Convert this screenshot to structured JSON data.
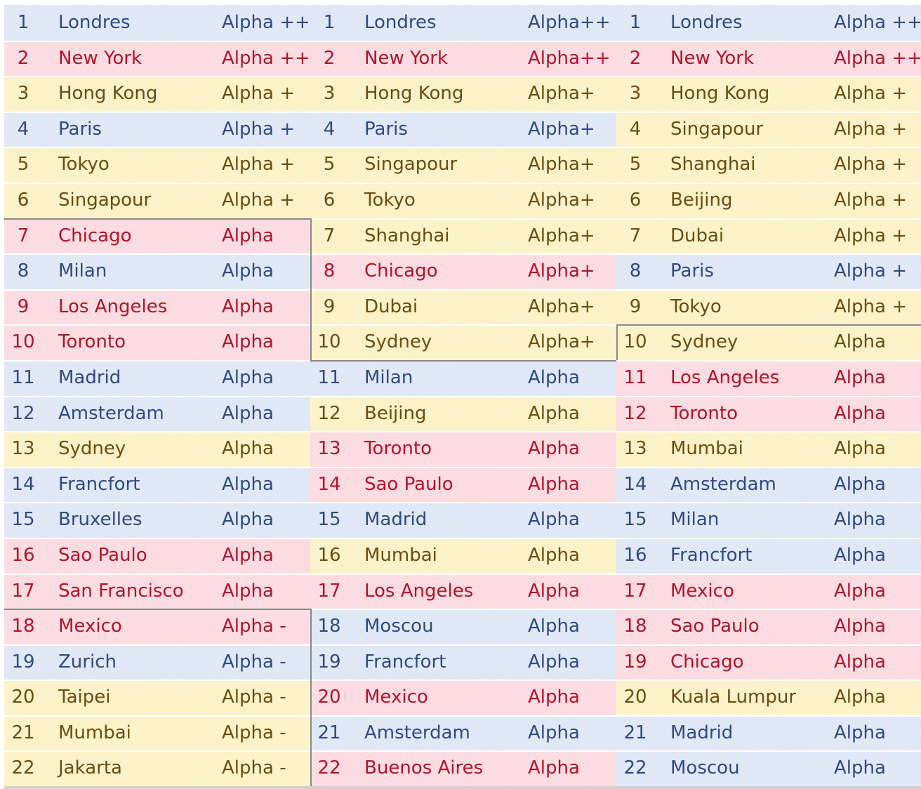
{
  "ranking": {
    "columns": [
      {
        "rows": [
          {
            "rank": "1",
            "city": "Londres",
            "tier": "Alpha ++",
            "color": "blue"
          },
          {
            "rank": "2",
            "city": "New York",
            "tier": "Alpha ++",
            "color": "red"
          },
          {
            "rank": "3",
            "city": "Hong Kong",
            "tier": "Alpha +",
            "color": "yellow"
          },
          {
            "rank": "4",
            "city": "Paris",
            "tier": "Alpha +",
            "color": "blue"
          },
          {
            "rank": "5",
            "city": "Tokyo",
            "tier": "Alpha +",
            "color": "yellow"
          },
          {
            "rank": "6",
            "city": "Singapour",
            "tier": "Alpha +",
            "color": "yellow"
          },
          {
            "rank": "7",
            "city": "Chicago",
            "tier": "Alpha",
            "color": "red"
          },
          {
            "rank": "8",
            "city": "Milan",
            "tier": "Alpha",
            "color": "blue"
          },
          {
            "rank": "9",
            "city": "Los Angeles",
            "tier": "Alpha",
            "color": "red"
          },
          {
            "rank": "10",
            "city": "Toronto",
            "tier": "Alpha",
            "color": "red"
          },
          {
            "rank": "11",
            "city": "Madrid",
            "tier": "Alpha",
            "color": "blue"
          },
          {
            "rank": "12",
            "city": "Amsterdam",
            "tier": "Alpha",
            "color": "blue"
          },
          {
            "rank": "13",
            "city": "Sydney",
            "tier": "Alpha",
            "color": "yellow"
          },
          {
            "rank": "14",
            "city": "Francfort",
            "tier": "Alpha",
            "color": "blue"
          },
          {
            "rank": "15",
            "city": "Bruxelles",
            "tier": "Alpha",
            "color": "blue"
          },
          {
            "rank": "16",
            "city": "Sao Paulo",
            "tier": "Alpha",
            "color": "red"
          },
          {
            "rank": "17",
            "city": "San Francisco",
            "tier": "Alpha",
            "color": "red"
          },
          {
            "rank": "18",
            "city": "Mexico",
            "tier": "Alpha -",
            "color": "red"
          },
          {
            "rank": "19",
            "city": "Zurich",
            "tier": "Alpha -",
            "color": "blue"
          },
          {
            "rank": "20",
            "city": "Taipei",
            "tier": "Alpha -",
            "color": "yellow"
          },
          {
            "rank": "21",
            "city": "Mumbai",
            "tier": "Alpha -",
            "color": "yellow"
          },
          {
            "rank": "22",
            "city": "Jakarta",
            "tier": "Alpha -",
            "color": "yellow"
          }
        ]
      },
      {
        "rows": [
          {
            "rank": "1",
            "city": "Londres",
            "tier": "Alpha++",
            "color": "blue"
          },
          {
            "rank": "2",
            "city": "New York",
            "tier": "Alpha++",
            "color": "red"
          },
          {
            "rank": "3",
            "city": "Hong Kong",
            "tier": "Alpha+",
            "color": "yellow"
          },
          {
            "rank": "4",
            "city": "Paris",
            "tier": "Alpha+",
            "color": "blue"
          },
          {
            "rank": "5",
            "city": "Singapour",
            "tier": "Alpha+",
            "color": "yellow"
          },
          {
            "rank": "6",
            "city": "Tokyo",
            "tier": "Alpha+",
            "color": "yellow"
          },
          {
            "rank": "7",
            "city": "Shanghai",
            "tier": "Alpha+",
            "color": "yellow"
          },
          {
            "rank": "8",
            "city": "Chicago",
            "tier": "Alpha+",
            "color": "red"
          },
          {
            "rank": "9",
            "city": "Dubai",
            "tier": "Alpha+",
            "color": "yellow"
          },
          {
            "rank": "10",
            "city": "Sydney",
            "tier": "Alpha+",
            "color": "yellow"
          },
          {
            "rank": "11",
            "city": "Milan",
            "tier": "Alpha",
            "color": "blue"
          },
          {
            "rank": "12",
            "city": "Beijing",
            "tier": "Alpha",
            "color": "yellow"
          },
          {
            "rank": "13",
            "city": "Toronto",
            "tier": "Alpha",
            "color": "red"
          },
          {
            "rank": "14",
            "city": "Sao Paulo",
            "tier": "Alpha",
            "color": "red"
          },
          {
            "rank": "15",
            "city": "Madrid",
            "tier": "Alpha",
            "color": "blue"
          },
          {
            "rank": "16",
            "city": "Mumbai",
            "tier": "Alpha",
            "color": "yellow"
          },
          {
            "rank": "17",
            "city": "Los Angeles",
            "tier": "Alpha",
            "color": "red"
          },
          {
            "rank": "18",
            "city": "Moscou",
            "tier": "Alpha",
            "color": "blue"
          },
          {
            "rank": "19",
            "city": "Francfort",
            "tier": "Alpha",
            "color": "blue"
          },
          {
            "rank": "20",
            "city": "Mexico",
            "tier": "Alpha",
            "color": "red"
          },
          {
            "rank": "21",
            "city": "Amsterdam",
            "tier": "Alpha",
            "color": "blue"
          },
          {
            "rank": "22",
            "city": "Buenos Aires",
            "tier": "Alpha",
            "color": "red"
          }
        ]
      },
      {
        "rows": [
          {
            "rank": "1",
            "city": "Londres",
            "tier": "Alpha ++",
            "color": "blue"
          },
          {
            "rank": "2",
            "city": "New York",
            "tier": "Alpha ++",
            "color": "red"
          },
          {
            "rank": "3",
            "city": "Hong Kong",
            "tier": "Alpha +",
            "color": "yellow"
          },
          {
            "rank": "4",
            "city": "Singapour",
            "tier": "Alpha +",
            "color": "yellow"
          },
          {
            "rank": "5",
            "city": "Shanghai",
            "tier": "Alpha +",
            "color": "yellow"
          },
          {
            "rank": "6",
            "city": "Beijing",
            "tier": "Alpha +",
            "color": "yellow"
          },
          {
            "rank": "7",
            "city": "Dubai",
            "tier": "Alpha +",
            "color": "yellow"
          },
          {
            "rank": "8",
            "city": "Paris",
            "tier": "Alpha +",
            "color": "blue"
          },
          {
            "rank": "9",
            "city": "Tokyo",
            "tier": "Alpha +",
            "color": "yellow"
          },
          {
            "rank": "10",
            "city": "Sydney",
            "tier": "Alpha",
            "color": "yellow"
          },
          {
            "rank": "11",
            "city": "Los Angeles",
            "tier": "Alpha",
            "color": "red"
          },
          {
            "rank": "12",
            "city": "Toronto",
            "tier": "Alpha",
            "color": "red"
          },
          {
            "rank": "13",
            "city": "Mumbai",
            "tier": "Alpha",
            "color": "yellow"
          },
          {
            "rank": "14",
            "city": "Amsterdam",
            "tier": "Alpha",
            "color": "blue"
          },
          {
            "rank": "15",
            "city": "Milan",
            "tier": "Alpha",
            "color": "blue"
          },
          {
            "rank": "16",
            "city": "Francfort",
            "tier": "Alpha",
            "color": "blue"
          },
          {
            "rank": "17",
            "city": "Mexico",
            "tier": "Alpha",
            "color": "red"
          },
          {
            "rank": "18",
            "city": "Sao Paulo",
            "tier": "Alpha",
            "color": "red"
          },
          {
            "rank": "19",
            "city": "Chicago",
            "tier": "Alpha",
            "color": "red"
          },
          {
            "rank": "20",
            "city": "Kuala Lumpur",
            "tier": "Alpha",
            "color": "yellow"
          },
          {
            "rank": "21",
            "city": "Madrid",
            "tier": "Alpha",
            "color": "blue"
          },
          {
            "rank": "22",
            "city": "Moscou",
            "tier": "Alpha",
            "color": "blue"
          }
        ]
      }
    ]
  }
}
